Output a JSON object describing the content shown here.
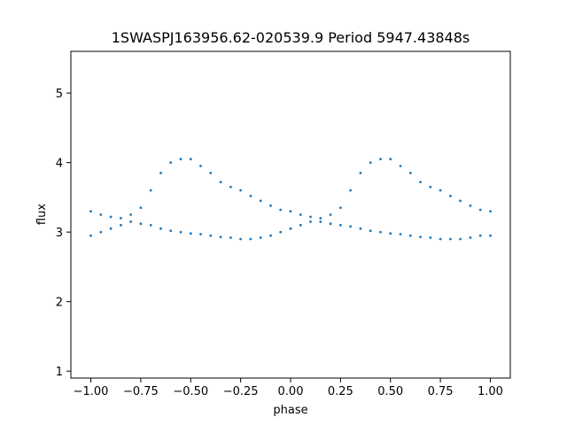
{
  "chart_data": {
    "type": "scatter",
    "title": "1SWASPJ163956.62-020539.9 Period 5947.43848s",
    "xlabel": "phase",
    "ylabel": "flux",
    "xlim": [
      -1.1,
      1.1
    ],
    "ylim": [
      0.9,
      5.6
    ],
    "x_ticks": [
      -1.0,
      -0.75,
      -0.5,
      -0.25,
      0.0,
      0.25,
      0.5,
      0.75,
      1.0
    ],
    "x_tick_labels": [
      "−1.00",
      "−0.75",
      "−0.50",
      "−0.25",
      "0.00",
      "0.25",
      "0.50",
      "0.75",
      "1.00"
    ],
    "y_ticks": [
      1,
      2,
      3,
      4,
      5
    ],
    "y_tick_labels": [
      "1",
      "2",
      "3",
      "4",
      "5"
    ],
    "grid": false,
    "legend": "none",
    "marker_color": "#1f77b4",
    "series": [
      {
        "x": [
          -1.0,
          -0.95,
          -0.9,
          -0.85,
          -0.8,
          -0.75,
          -0.7,
          -0.65,
          -0.6,
          -0.55,
          -0.5,
          -0.45,
          -0.4,
          -0.35,
          -0.3,
          -0.25,
          -0.2,
          -0.15,
          -0.1,
          -0.05,
          0.0,
          0.05,
          0.1,
          0.15,
          0.2,
          0.25,
          0.3,
          0.35,
          0.4,
          0.45,
          0.5,
          0.55,
          0.6,
          0.65,
          0.7,
          0.75,
          0.8,
          0.85,
          0.9,
          0.95,
          1.0
        ],
        "y": [
          3.3,
          3.25,
          3.22,
          3.2,
          3.25,
          3.35,
          3.6,
          3.85,
          4.0,
          4.05,
          4.05,
          3.95,
          3.85,
          3.72,
          3.65,
          3.6,
          3.52,
          3.45,
          3.38,
          3.32,
          3.3,
          3.25,
          3.22,
          3.2,
          3.25,
          3.35,
          3.6,
          3.85,
          4.0,
          4.05,
          4.05,
          3.95,
          3.85,
          3.72,
          3.65,
          3.6,
          3.52,
          3.45,
          3.38,
          3.32,
          3.3
        ]
      },
      {
        "x": [
          -1.0,
          -0.95,
          -0.9,
          -0.85,
          -0.8,
          -0.75,
          -0.7,
          -0.65,
          -0.6,
          -0.55,
          -0.5,
          -0.45,
          -0.4,
          -0.35,
          -0.3,
          -0.25,
          -0.2,
          -0.15,
          -0.1,
          -0.05,
          0.0,
          0.05,
          0.1,
          0.15,
          0.2,
          0.25,
          0.3,
          0.35,
          0.4,
          0.45,
          0.5,
          0.55,
          0.6,
          0.65,
          0.7,
          0.75,
          0.8,
          0.85,
          0.9,
          0.95,
          1.0
        ],
        "y": [
          2.95,
          3.0,
          3.05,
          3.1,
          3.15,
          3.12,
          3.1,
          3.05,
          3.02,
          3.0,
          2.98,
          2.97,
          2.95,
          2.93,
          2.92,
          2.9,
          2.9,
          2.92,
          2.95,
          3.0,
          3.05,
          3.1,
          3.15,
          3.15,
          3.12,
          3.1,
          3.08,
          3.05,
          3.02,
          3.0,
          2.98,
          2.97,
          2.95,
          2.93,
          2.92,
          2.9,
          2.9,
          2.9,
          2.92,
          2.95,
          2.95
        ]
      }
    ]
  }
}
